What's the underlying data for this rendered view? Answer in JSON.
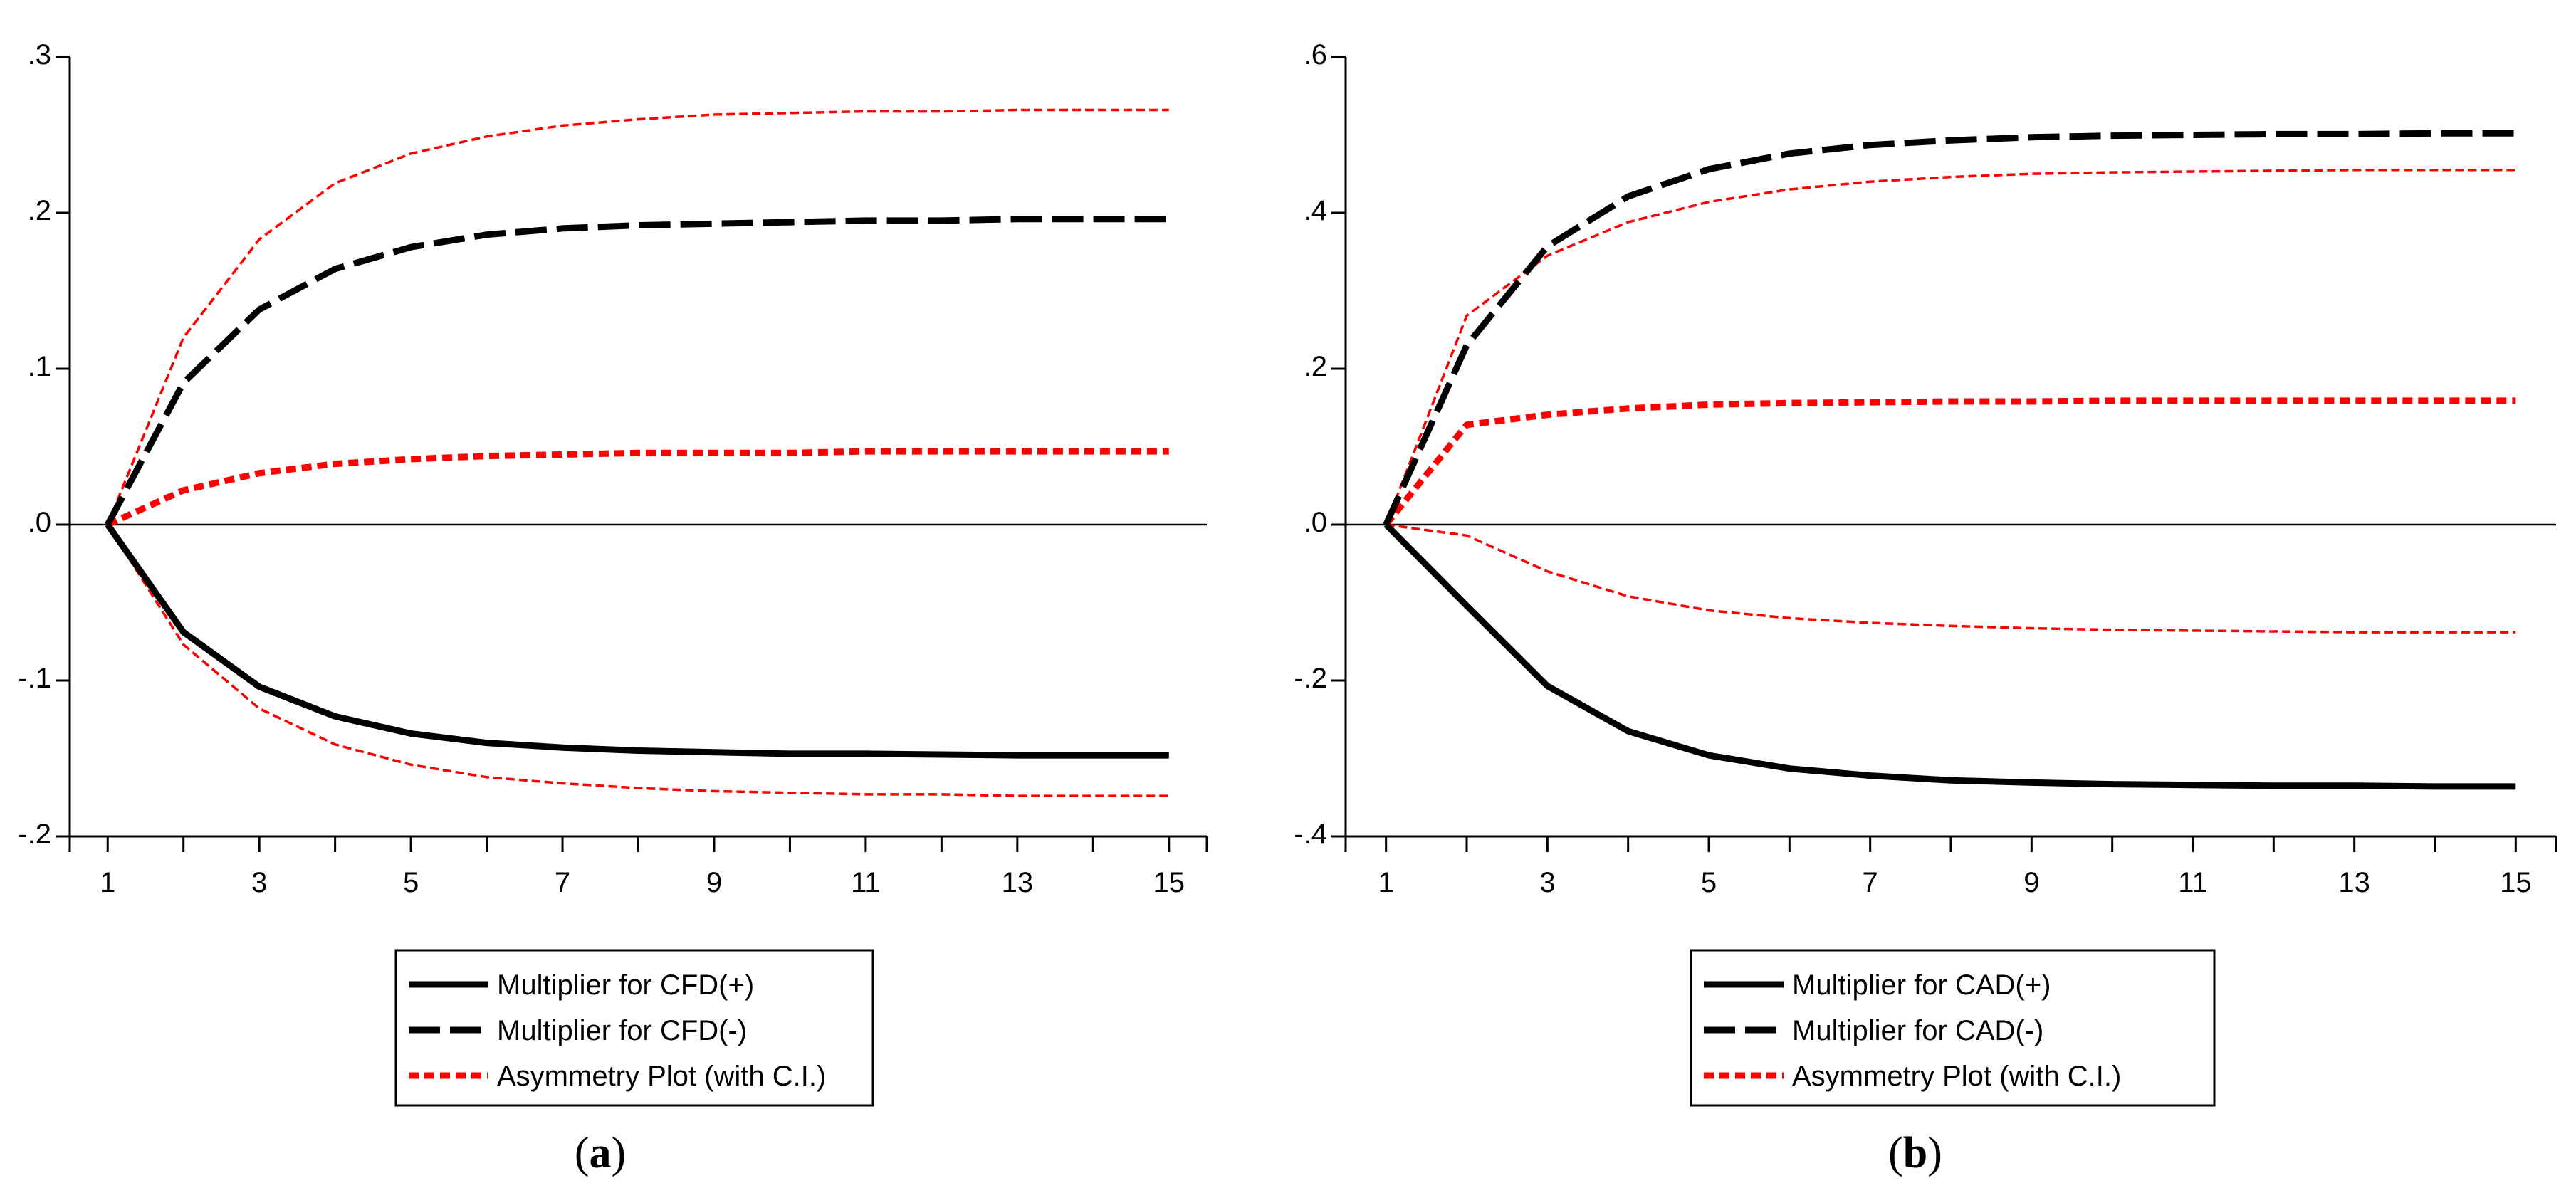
{
  "chart_data": [
    {
      "type": "line",
      "caption_letter": "a",
      "caption_open": "(",
      "caption_close": ")",
      "x": [
        1,
        2,
        3,
        4,
        5,
        6,
        7,
        8,
        9,
        10,
        11,
        12,
        13,
        14,
        15
      ],
      "xticks": [
        "1",
        "3",
        "5",
        "7",
        "9",
        "11",
        "13",
        "15"
      ],
      "xtick_values": [
        1,
        3,
        5,
        7,
        9,
        11,
        13,
        15
      ],
      "xlim": [
        0.5,
        15.5
      ],
      "ylim": [
        -0.2,
        0.3
      ],
      "yticks": [
        ".3",
        ".2",
        ".1",
        ".0",
        "-.1",
        "-.2"
      ],
      "ytick_values": [
        0.3,
        0.2,
        0.1,
        0.0,
        -0.1,
        -0.2
      ],
      "series": [
        {
          "name": "Multiplier for CFD(+)",
          "style": "solid",
          "color": "#000000",
          "values": [
            0,
            -0.069,
            -0.104,
            -0.123,
            -0.134,
            -0.14,
            -0.143,
            -0.145,
            -0.146,
            -0.147,
            -0.147,
            -0.1475,
            -0.148,
            -0.148,
            -0.148
          ]
        },
        {
          "name": "Multiplier for CFD(-)",
          "style": "dashed",
          "color": "#000000",
          "values": [
            0,
            0.091,
            0.138,
            0.164,
            0.178,
            0.186,
            0.19,
            0.192,
            0.193,
            0.194,
            0.195,
            0.195,
            0.196,
            0.196,
            0.196
          ]
        },
        {
          "name": "Asymmetry Plot (with C.I.)",
          "style": "dotted",
          "color": "#ff0000",
          "values": [
            0,
            0.022,
            0.033,
            0.039,
            0.042,
            0.044,
            0.045,
            0.046,
            0.046,
            0.046,
            0.047,
            0.047,
            0.047,
            0.047,
            0.047
          ]
        },
        {
          "name": "Upper C.I.",
          "style": "thin-dashed",
          "color": "#ff0000",
          "in_legend": false,
          "values": [
            0,
            0.12,
            0.183,
            0.219,
            0.238,
            0.249,
            0.256,
            0.26,
            0.263,
            0.264,
            0.265,
            0.265,
            0.266,
            0.266,
            0.266
          ]
        },
        {
          "name": "Lower C.I.",
          "style": "thin-dashed",
          "color": "#ff0000",
          "in_legend": false,
          "values": [
            0,
            -0.077,
            -0.118,
            -0.141,
            -0.154,
            -0.162,
            -0.166,
            -0.169,
            -0.171,
            -0.172,
            -0.173,
            -0.173,
            -0.174,
            -0.174,
            -0.174
          ]
        }
      ],
      "legend": [
        "Multiplier for CFD(+)",
        "Multiplier for CFD(-)",
        "Asymmetry Plot (with C.I.)"
      ]
    },
    {
      "type": "line",
      "caption_letter": "b",
      "caption_open": "(",
      "caption_close": ")",
      "x": [
        1,
        2,
        3,
        4,
        5,
        6,
        7,
        8,
        9,
        10,
        11,
        12,
        13,
        14,
        15
      ],
      "xticks": [
        "1",
        "3",
        "5",
        "7",
        "9",
        "11",
        "13",
        "15"
      ],
      "xtick_values": [
        1,
        3,
        5,
        7,
        9,
        11,
        13,
        15
      ],
      "xlim": [
        0.5,
        15.5
      ],
      "ylim": [
        -0.4,
        0.6
      ],
      "yticks": [
        ".6",
        ".4",
        ".2",
        ".0",
        "-.2",
        "-.4"
      ],
      "ytick_values": [
        0.6,
        0.4,
        0.2,
        0.0,
        -0.2,
        -0.4
      ],
      "series": [
        {
          "name": "Multiplier for CAD(+)",
          "style": "solid",
          "color": "#000000",
          "values": [
            0,
            -0.104,
            -0.207,
            -0.265,
            -0.296,
            -0.313,
            -0.322,
            -0.328,
            -0.331,
            -0.333,
            -0.334,
            -0.335,
            -0.335,
            -0.336,
            -0.336
          ]
        },
        {
          "name": "Multiplier for CAD(-)",
          "style": "dashed",
          "color": "#000000",
          "values": [
            0,
            0.23,
            0.357,
            0.421,
            0.456,
            0.476,
            0.487,
            0.493,
            0.497,
            0.499,
            0.5,
            0.501,
            0.501,
            0.502,
            0.502
          ]
        },
        {
          "name": "Asymmetry Plot (with C.I.)",
          "style": "dotted",
          "color": "#ff0000",
          "values": [
            0,
            0.128,
            0.141,
            0.149,
            0.154,
            0.156,
            0.157,
            0.158,
            0.158,
            0.159,
            0.159,
            0.159,
            0.159,
            0.159,
            0.159
          ]
        },
        {
          "name": "Upper C.I.",
          "style": "thin-dashed",
          "color": "#ff0000",
          "in_legend": false,
          "values": [
            0,
            0.268,
            0.345,
            0.388,
            0.414,
            0.43,
            0.44,
            0.446,
            0.45,
            0.452,
            0.453,
            0.454,
            0.455,
            0.455,
            0.455
          ]
        },
        {
          "name": "Lower C.I.",
          "style": "thin-dashed",
          "color": "#ff0000",
          "in_legend": false,
          "values": [
            0,
            -0.014,
            -0.06,
            -0.092,
            -0.11,
            -0.12,
            -0.126,
            -0.13,
            -0.133,
            -0.135,
            -0.136,
            -0.137,
            -0.138,
            -0.138,
            -0.138
          ]
        }
      ],
      "legend": [
        "Multiplier for CAD(+)",
        "Multiplier for CAD(-)",
        "Asymmetry Plot (with C.I.)"
      ]
    }
  ]
}
